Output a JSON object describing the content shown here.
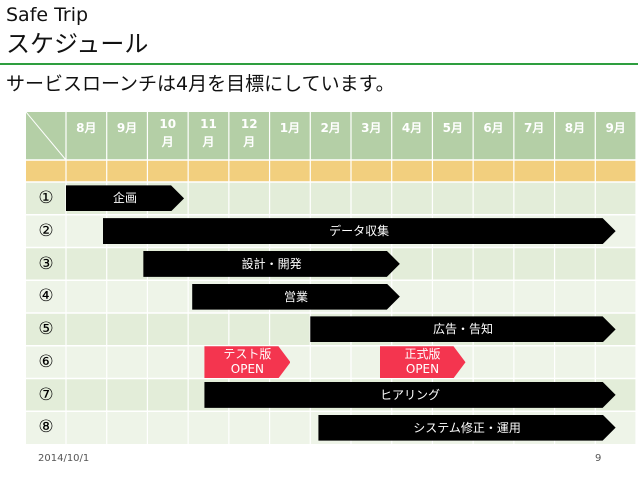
{
  "header": {
    "app_title": "Safe Trip",
    "page_title": "スケジュール",
    "subtitle": "サービスローンチは4月を目標にしています。"
  },
  "gantt": {
    "months": [
      "8月",
      "9月",
      "10\n月",
      "11\n月",
      "12\n月",
      "1月",
      "2月",
      "3月",
      "4月",
      "5月",
      "6月",
      "7月",
      "8月",
      "9月"
    ],
    "rows": [
      "①",
      "②",
      "③",
      "④",
      "⑤",
      "⑥",
      "⑦",
      "⑧"
    ],
    "tasks": [
      {
        "row": 0,
        "label": "企画",
        "start": 0.0,
        "end": 2.9
      },
      {
        "row": 1,
        "label": "データ収集",
        "start": 0.9,
        "end": 13.5
      },
      {
        "row": 2,
        "label": "設計・開発",
        "start": 1.9,
        "end": 8.2
      },
      {
        "row": 3,
        "label": "営業",
        "start": 3.1,
        "end": 8.2
      },
      {
        "row": 4,
        "label": "広告・告知",
        "start": 6.0,
        "end": 13.5
      },
      {
        "row": 6,
        "label": "ヒアリング",
        "start": 3.4,
        "end": 13.5
      },
      {
        "row": 7,
        "label": "システム修正・運用",
        "start": 6.2,
        "end": 13.5
      }
    ],
    "milestones": [
      {
        "row": 5,
        "line1": "テスト版",
        "line2": "OPEN",
        "start": 3.4
      },
      {
        "row": 5,
        "line1": "正式版",
        "line2": "OPEN",
        "start": 7.7
      }
    ],
    "colors": {
      "header_bg": "#b4cfa6",
      "band_bg": "#f2cf7e",
      "row_odd": "#e3edd9",
      "row_even": "#eef4e8",
      "grid_line": "#ffffff",
      "bar": "#000000",
      "milestone": "#f4354f"
    }
  },
  "footer": {
    "date": "2014/10/1",
    "page": "9"
  }
}
